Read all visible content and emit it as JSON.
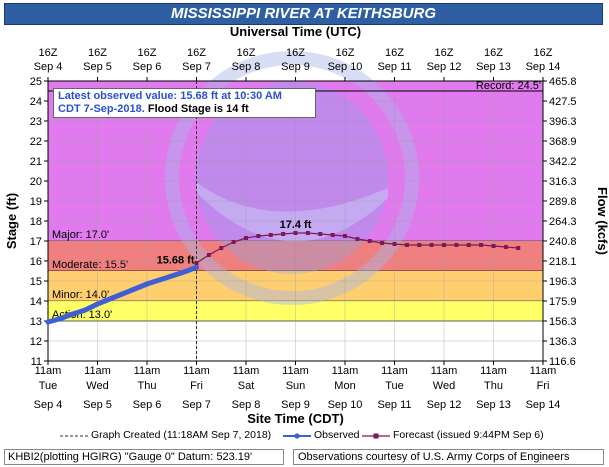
{
  "title": "MISSISSIPPI RIVER AT KEITHSBURG",
  "info_box": {
    "line1": "Latest observed value: 15.68 ft at 10:30 AM",
    "line2a": "CDT 7-Sep-2018.",
    "line2b": " Flood Stage is 14 ft"
  },
  "legend": {
    "created": "Graph Created (11:18AM Sep 7, 2018)",
    "observed": "Observed",
    "forecast": "Forecast (issued 9:44PM Sep 6)"
  },
  "footer": {
    "left": "KHBI2(plotting HGIRG) \"Gauge 0\" Datum: 523.19'",
    "right": "Observations courtesy of U.S. Army Corps of Engineers"
  },
  "colors": {
    "title_bg": "#2f5fa3",
    "major": "#e07aee",
    "moderate": "#f07f7f",
    "minor": "#ffcf6f",
    "action": "#ffff66",
    "normal": "#ffffff",
    "observed": "#3d5fd8",
    "forecast": "#7a1a5a"
  },
  "chart_data": {
    "type": "line",
    "top_axis_label": "Universal Time (UTC)",
    "bottom_axis_label": "Site Time (CDT)",
    "ylabel": "Stage (ft)",
    "y2label": "Flow (kcfs)",
    "ylim": [
      11,
      25
    ],
    "yticks": [
      11,
      12,
      13,
      14,
      15,
      16,
      17,
      18,
      19,
      20,
      21,
      22,
      23,
      24,
      25
    ],
    "y2ticks": [
      "116.6",
      "136.3",
      "156.3",
      "175.9",
      "196.3",
      "218.1",
      "240.8",
      "264.3",
      "289.8",
      "316.3",
      "342.2",
      "368.9",
      "396.3",
      "427.5",
      "465.8"
    ],
    "top_ticks": [
      {
        "t": "16Z",
        "d": "Sep 4"
      },
      {
        "t": "16Z",
        "d": "Sep 5"
      },
      {
        "t": "16Z",
        "d": "Sep 6"
      },
      {
        "t": "16Z",
        "d": "Sep 7"
      },
      {
        "t": "16Z",
        "d": "Sep 8"
      },
      {
        "t": "16Z",
        "d": "Sep 9"
      },
      {
        "t": "16Z",
        "d": "Sep 10"
      },
      {
        "t": "16Z",
        "d": "Sep 11"
      },
      {
        "t": "16Z",
        "d": "Sep 12"
      },
      {
        "t": "16Z",
        "d": "Sep 13"
      },
      {
        "t": "16Z",
        "d": "Sep 14"
      }
    ],
    "bottom_ticks": [
      {
        "t": "11am",
        "w": "Tue",
        "d": "Sep 4"
      },
      {
        "t": "11am",
        "w": "Wed",
        "d": "Sep 5"
      },
      {
        "t": "11am",
        "w": "Thu",
        "d": "Sep 6"
      },
      {
        "t": "11am",
        "w": "Fri",
        "d": "Sep 7"
      },
      {
        "t": "11am",
        "w": "Sat",
        "d": "Sep 8"
      },
      {
        "t": "11am",
        "w": "Sun",
        "d": "Sep 9"
      },
      {
        "t": "11am",
        "w": "Mon",
        "d": "Sep 10"
      },
      {
        "t": "11am",
        "w": "Tue",
        "d": "Sep 11"
      },
      {
        "t": "11am",
        "w": "Wed",
        "d": "Sep 12"
      },
      {
        "t": "11am",
        "w": "Thu",
        "d": "Sep 13"
      },
      {
        "t": "11am",
        "w": "Fri",
        "d": "Sep 14"
      }
    ],
    "bands": [
      {
        "name": "Major",
        "label": "Major: 17.0'",
        "from": 17.0,
        "to": 25,
        "color": "#e07aee"
      },
      {
        "name": "Moderate",
        "label": "Moderate: 15.5'",
        "from": 15.5,
        "to": 17.0,
        "color": "#f07f7f"
      },
      {
        "name": "Minor",
        "label": "Minor: 14.0'",
        "from": 14.0,
        "to": 15.5,
        "color": "#ffcf6f"
      },
      {
        "name": "Action",
        "label": "Action: 13.0'",
        "from": 13.0,
        "to": 14.0,
        "color": "#ffff66"
      }
    ],
    "record": {
      "label": "Record: 24.5'",
      "value": 24.5
    },
    "graph_created_day": 3.0,
    "observed_label": "15.68 ft",
    "observed": {
      "x": [
        0.0,
        0.25,
        0.5,
        0.75,
        1.0,
        1.25,
        1.5,
        1.75,
        2.0,
        2.25,
        2.5,
        2.75,
        3.0
      ],
      "y": [
        12.95,
        13.12,
        13.35,
        13.55,
        13.85,
        14.1,
        14.35,
        14.6,
        14.85,
        15.05,
        15.25,
        15.45,
        15.68
      ]
    },
    "forecast_peak_label": "17.4 ft",
    "forecast": {
      "x": [
        3.0,
        3.25,
        3.5,
        3.75,
        4.0,
        4.25,
        4.5,
        4.75,
        5.0,
        5.25,
        5.5,
        5.75,
        6.0,
        6.25,
        6.5,
        6.75,
        7.0,
        7.25,
        7.5,
        7.75,
        8.0,
        8.25,
        8.5,
        8.75,
        9.0,
        9.25,
        9.5
      ],
      "y": [
        15.9,
        16.3,
        16.65,
        16.95,
        17.15,
        17.25,
        17.3,
        17.35,
        17.4,
        17.4,
        17.35,
        17.3,
        17.25,
        17.1,
        17.0,
        16.9,
        16.85,
        16.8,
        16.8,
        16.8,
        16.8,
        16.8,
        16.8,
        16.8,
        16.75,
        16.7,
        16.65
      ]
    }
  }
}
